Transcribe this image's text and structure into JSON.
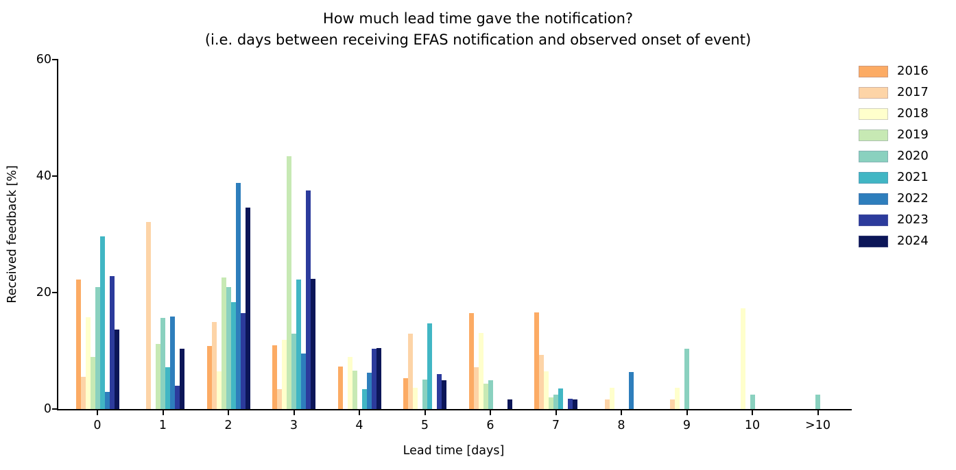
{
  "title": {
    "line1": "How much lead time gave the notification?",
    "line2": "(i.e. days between receiving EFAS notification and observed onset of event)"
  },
  "chart_data": {
    "type": "bar",
    "title": "How much lead time gave the notification?",
    "subtitle": "(i.e. days between receiving EFAS notification and observed onset of event)",
    "xlabel": "Lead time [days]",
    "ylabel": "Received feedback [%]",
    "categories": [
      "0",
      "1",
      "2",
      "3",
      "4",
      "5",
      "6",
      "7",
      "8",
      "9",
      "10",
      ">10"
    ],
    "y_ticks": [
      0,
      20,
      40,
      60
    ],
    "ylim": [
      0,
      60
    ],
    "grid": false,
    "legend_position": "upper right, outside axes",
    "series": [
      {
        "name": "2016",
        "color": "#fcab64",
        "values": [
          22.2,
          0,
          10.8,
          10.9,
          7.3,
          5.3,
          16.5,
          16.6,
          0,
          0,
          0,
          0
        ]
      },
      {
        "name": "2017",
        "color": "#fdd4a7",
        "values": [
          5.5,
          32.1,
          14.9,
          3.4,
          0,
          13.0,
          7.2,
          9.3,
          1.6,
          1.6,
          0,
          0
        ]
      },
      {
        "name": "2018",
        "color": "#ffffcc",
        "values": [
          15.8,
          0,
          6.5,
          11.9,
          9.0,
          3.6,
          13.1,
          6.5,
          3.7,
          3.7,
          17.3,
          0
        ]
      },
      {
        "name": "2019",
        "color": "#c7e9b4",
        "values": [
          8.9,
          11.2,
          22.6,
          43.4,
          6.6,
          0,
          4.3,
          2.0,
          0,
          0,
          0,
          0
        ]
      },
      {
        "name": "2020",
        "color": "#8ad1bf",
        "values": [
          21.0,
          15.7,
          20.9,
          13.0,
          0,
          5.1,
          5.0,
          2.5,
          0,
          10.4,
          2.5,
          2.5
        ]
      },
      {
        "name": "2021",
        "color": "#41b6c4",
        "values": [
          29.6,
          7.2,
          18.4,
          22.2,
          3.4,
          14.7,
          0,
          3.5,
          0,
          0,
          0,
          0
        ]
      },
      {
        "name": "2022",
        "color": "#2e7ebc",
        "values": [
          3.0,
          15.9,
          38.8,
          9.5,
          6.2,
          0,
          0,
          0,
          6.3,
          0,
          0,
          0
        ]
      },
      {
        "name": "2023",
        "color": "#2c3b9c",
        "values": [
          22.8,
          4.0,
          16.5,
          37.5,
          10.3,
          6.0,
          0,
          1.8,
          0,
          0,
          0,
          0
        ]
      },
      {
        "name": "2024",
        "color": "#0c1658",
        "values": [
          13.6,
          10.4,
          34.6,
          22.3,
          10.5,
          4.9,
          1.6,
          1.6,
          0,
          0,
          0,
          0
        ]
      }
    ]
  },
  "axes": {
    "xlabel": "Lead time [days]",
    "ylabel": "Received feedback [%]"
  },
  "legend": {
    "entries": [
      "2016",
      "2017",
      "2018",
      "2019",
      "2020",
      "2021",
      "2022",
      "2023",
      "2024"
    ]
  }
}
